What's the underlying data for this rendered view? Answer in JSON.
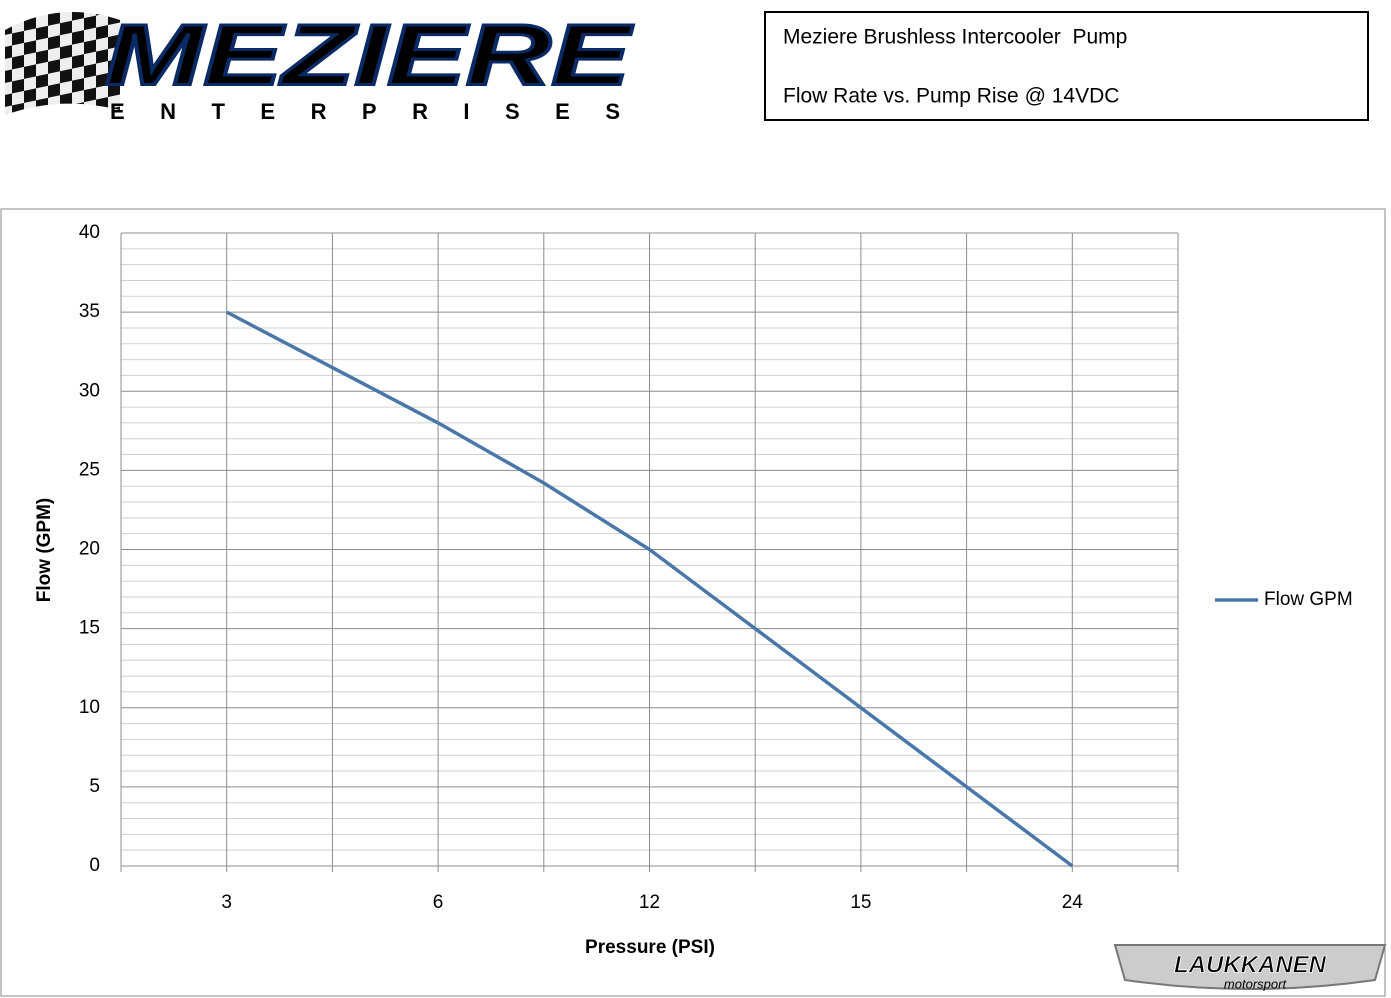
{
  "logo": {
    "name": "MEZIERE",
    "tagline": "ENTERPRISES"
  },
  "watermark": {
    "name": "LAUKKANEN",
    "tagline": "motorsport"
  },
  "chart_data": {
    "type": "line",
    "title": "Meziere Brushless Intercooler  Pump",
    "subtitle": "Flow Rate vs. Pump Rise @ 14VDC",
    "x_label": "Pressure (PSI)",
    "y_label": "Flow (GPM)",
    "categories": [
      null,
      "3",
      null,
      "6",
      null,
      "12",
      null,
      "15",
      null,
      "24",
      null
    ],
    "series": [
      {
        "name": "Flow GPM",
        "color": "#4a77aa",
        "values": [
          null,
          35,
          31.5,
          28,
          24.2,
          20,
          15,
          10,
          5,
          0,
          null
        ]
      }
    ],
    "ylim": [
      0,
      40
    ],
    "yticks": [
      0,
      5,
      10,
      15,
      20,
      25,
      30,
      35,
      40
    ],
    "grid": true,
    "minor_grid": true,
    "legend": "right"
  }
}
